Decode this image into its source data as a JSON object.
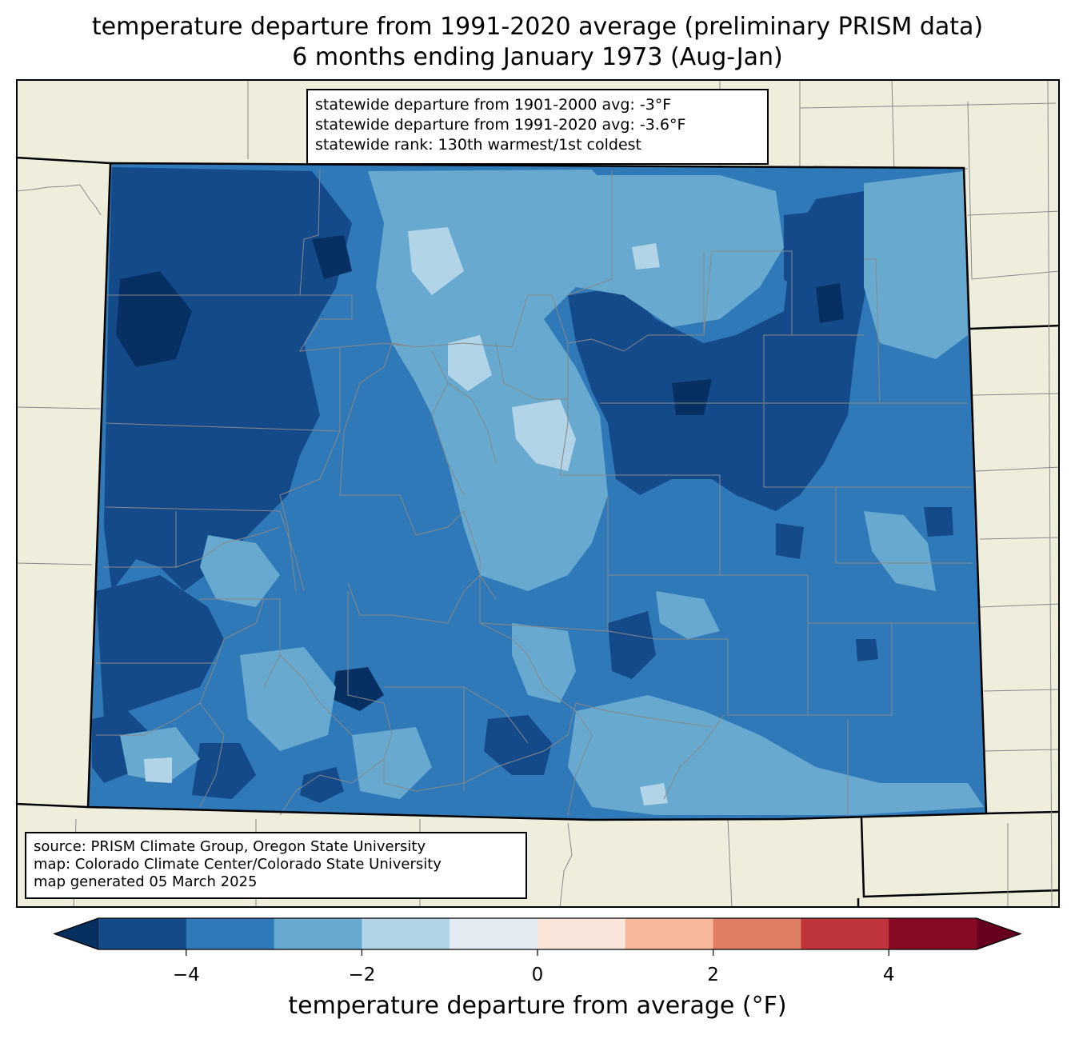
{
  "title_line1": "temperature departure from 1991-2020 average (preliminary PRISM data)",
  "title_line2": "6 months ending January 1973 (Aug-Jan)",
  "stats": [
    "statewide departure from 1901-2000 avg: -3°F",
    "statewide departure from 1991-2020 avg: -3.6°F",
    "statewide rank: 130th warmest/1st coldest"
  ],
  "source": [
    "source: PRISM Climate Group, Oregon State University",
    "map: Colorado Climate Center/Colorado State University",
    "map generated 05 March 2025"
  ],
  "colorbar": {
    "label": "temperature departure from average (°F)",
    "ticks": [
      "−4",
      "−2",
      "0",
      "2",
      "4"
    ],
    "tick_values": [
      -4,
      -2,
      0,
      2,
      4
    ],
    "range": [
      -5,
      5
    ],
    "bounds": [
      -5,
      -4,
      -3,
      -2,
      -1,
      0,
      1,
      2,
      3,
      4,
      5
    ],
    "colors": [
      "#154a8a",
      "#2f79b8",
      "#67a9cf",
      "#b1d4e7",
      "#e4ecf3",
      "#fae5da",
      "#f7b89b",
      "#e07d65",
      "#c0353b",
      "#870a25"
    ],
    "under_color": "#053061",
    "over_color": "#67001f"
  },
  "map": {
    "land_color": "#efeedc",
    "state_fill_base": "#2f79b8",
    "dominant_range": "-5 to -1 °F (cooler than average statewide)"
  }
}
